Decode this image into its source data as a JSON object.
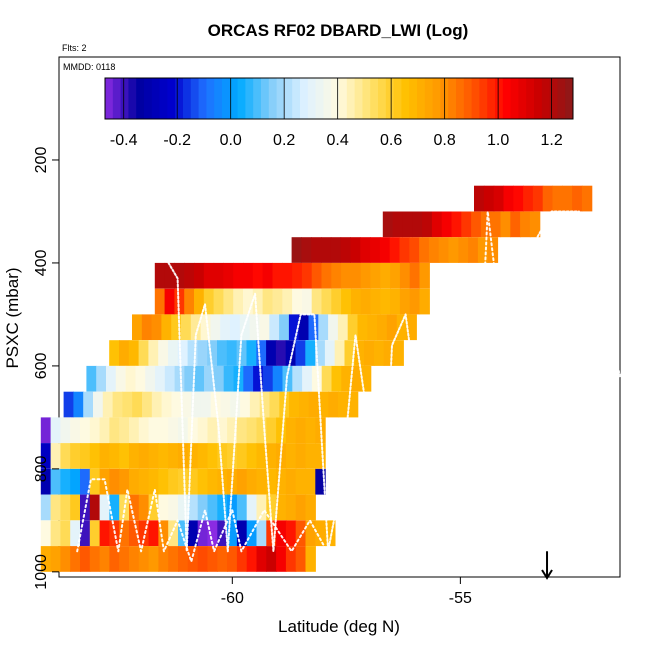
{
  "chart_data": {
    "type": "heatmap",
    "title": "ORCAS RF02 DBARD_LWI (Log)",
    "annotations": {
      "flts": "Flts: 2",
      "mmdd": "MMDD: 0118"
    },
    "xlabel": "Latitude (deg N)",
    "ylabel": "PSXC (mbar)",
    "xlim": [
      -63.8,
      -51.5
    ],
    "ylim": [
      1010,
      0
    ],
    "x_ticks": [
      -60,
      -55
    ],
    "x_tick_labels": [
      "-60",
      "-55"
    ],
    "y_ticks": [
      200,
      400,
      600,
      800,
      1000
    ],
    "y_tick_labels": [
      "200",
      "400",
      "600",
      "800",
      "1000"
    ],
    "colorbar": {
      "range": [
        -0.47,
        1.28
      ],
      "ticks": [
        -0.4,
        -0.2,
        0.0,
        0.2,
        0.4,
        0.6,
        0.8,
        1.0,
        1.2
      ],
      "tick_labels": [
        "-0.4",
        "-0.2",
        "0.0",
        "0.2",
        "0.4",
        "0.6",
        "0.8",
        "1.0",
        "1.2"
      ],
      "colors": [
        "#8a2be2",
        "#0000a0",
        "#0000cd",
        "#1e6fff",
        "#00aaff",
        "#87cefa",
        "#dff2ff",
        "#fffae0",
        "#ffe066",
        "#ffc000",
        "#ff9900",
        "#ff5500",
        "#ff0000",
        "#c80000",
        "#8b1a1a"
      ]
    },
    "lat_bins": {
      "start": -63.3,
      "step": 0.5,
      "count": 24
    },
    "pressure_bins": {
      "start": 250,
      "step": 50,
      "count": 15
    },
    "rows": [
      {
        "p": 275,
        "lat0": -54.7,
        "vals": [
          1.18,
          1.15,
          1.12,
          1.05,
          1.02,
          0.98,
          0.95,
          0.88,
          0.85,
          0.85,
          0.88,
          0.85
        ]
      },
      {
        "p": 325,
        "lat0": -56.7,
        "vals": [
          1.22,
          1.2,
          1.2,
          1.2,
          1.18,
          1.1,
          1.05,
          1.0,
          0.95,
          0.9,
          0.85,
          0.85,
          0.8,
          0.88,
          0.82,
          0.8
        ]
      },
      {
        "p": 375,
        "lat0": -58.7,
        "vals": [
          1.25,
          1.22,
          1.2,
          1.2,
          1.2,
          1.18,
          1.15,
          1.1,
          1.08,
          1.05,
          1.0,
          0.95,
          0.92,
          0.85,
          0.82,
          0.8,
          0.78,
          0.8,
          0.82,
          0.78,
          0.8
        ]
      },
      {
        "p": 425,
        "lat0": -61.7,
        "vals": [
          1.2,
          1.2,
          1.2,
          1.18,
          1.15,
          1.1,
          1.1,
          1.08,
          1.05,
          1.05,
          1.02,
          1.05,
          1.0,
          1.0,
          0.98,
          0.95,
          0.9,
          0.85,
          0.82,
          0.8,
          0.8,
          0.78,
          0.75,
          0.72,
          0.75,
          0.8,
          0.85,
          0.78
        ]
      },
      {
        "p": 475,
        "lat0": -61.7,
        "vals": [
          0.85,
          1.05,
          0.95,
          0.82,
          0.7,
          0.6,
          0.55,
          0.5,
          0.45,
          0.42,
          0.45,
          0.5,
          0.48,
          0.45,
          0.4,
          0.38,
          0.5,
          0.55,
          0.6,
          0.65,
          0.7,
          0.72,
          0.7,
          0.68,
          0.7,
          0.75,
          0.78,
          0.72
        ]
      },
      {
        "p": 525,
        "lat0": -62.2,
        "vals": [
          0.75,
          0.82,
          0.8,
          0.7,
          0.62,
          0.55,
          0.48,
          0.42,
          0.35,
          0.3,
          0.28,
          0.32,
          0.35,
          0.38,
          0.25,
          0.15,
          -0.2,
          -0.3,
          -0.1,
          0.2,
          0.35,
          0.45,
          0.6,
          0.68,
          0.7,
          0.72,
          0.75,
          0.7,
          0.72
        ]
      },
      {
        "p": 575,
        "lat0": -62.7,
        "vals": [
          0.65,
          0.72,
          0.68,
          0.55,
          0.45,
          0.38,
          0.32,
          0.28,
          0.22,
          0.18,
          0.15,
          0.1,
          0.08,
          0.12,
          0.05,
          -0.1,
          -0.3,
          -0.38,
          -0.3,
          -0.15,
          0.05,
          0.2,
          0.3,
          0.45,
          0.6,
          0.7,
          0.72,
          0.7,
          0.72,
          0.7
        ]
      },
      {
        "p": 625,
        "lat0": -63.2,
        "vals": [
          0.1,
          0.2,
          0.3,
          0.38,
          0.42,
          0.4,
          0.35,
          0.3,
          0.25,
          0.2,
          0.15,
          0.12,
          0.18,
          0.15,
          0.08,
          0.05,
          -0.1,
          -0.2,
          -0.15,
          -0.05,
          0.1,
          0.22,
          0.3,
          0.4,
          0.55,
          0.65,
          0.7,
          0.72,
          0.7
        ]
      },
      {
        "p": 675,
        "lat0": -63.7,
        "vals": [
          -0.15,
          -0.05,
          0.2,
          0.35,
          0.45,
          0.5,
          0.52,
          0.55,
          0.5,
          0.45,
          0.42,
          0.4,
          0.38,
          0.35,
          0.35,
          0.4,
          0.38,
          0.36,
          0.4,
          0.45,
          0.5,
          0.55,
          0.62,
          0.68,
          0.7,
          0.72,
          0.7,
          0.72,
          0.7,
          0.7
        ]
      },
      {
        "p": 725,
        "lat0": -64.2,
        "vals": [
          -0.45,
          0.3,
          0.35,
          0.38,
          0.4,
          0.42,
          0.45,
          0.5,
          0.48,
          0.45,
          0.42,
          0.4,
          0.4,
          0.38,
          0.36,
          0.4,
          0.42,
          0.45,
          0.42,
          0.45,
          0.5,
          0.52,
          0.55,
          0.6,
          0.65,
          0.7,
          0.72,
          0.7,
          0.72
        ]
      },
      {
        "p": 775,
        "lat0": -64.2,
        "vals": [
          -0.25,
          0.45,
          0.55,
          0.6,
          0.62,
          0.65,
          0.7,
          0.68,
          0.65,
          0.7,
          0.72,
          0.7,
          0.68,
          0.7,
          0.72,
          0.7,
          0.68,
          0.65,
          0.62,
          0.6,
          0.62,
          0.65,
          0.68,
          0.7,
          0.72,
          0.7,
          0.72,
          0.7,
          0.7
        ]
      },
      {
        "p": 825,
        "lat0": -64.2,
        "vals": [
          -0.3,
          0.1,
          0.05,
          0.02,
          -0.1,
          0.62,
          0.75,
          0.8,
          0.78,
          0.72,
          0.7,
          0.68,
          0.65,
          0.62,
          0.6,
          0.62,
          0.65,
          0.68,
          0.7,
          0.72,
          0.75,
          0.72,
          0.7,
          0.68,
          0.7,
          0.72,
          0.7,
          0.7,
          -0.35
        ]
      },
      {
        "p": 875,
        "lat0": -64.2,
        "vals": [
          0.2,
          0.5,
          0.55,
          0.62,
          -0.4,
          1.2,
          0.3,
          0.05,
          0.55,
          0.85,
          0.8,
          0.6,
          0.4,
          0.38,
          0.32,
          0.22,
          0.15,
          0.1,
          0.05,
          0.0,
          0.1,
          0.3,
          0.45,
          0.6,
          0.7,
          0.72,
          0.75,
          0.72
        ]
      },
      {
        "p": 925,
        "lat0": -64.2,
        "vals": [
          0.4,
          0.5,
          0.55,
          0.3,
          -0.4,
          0.6,
          1.0,
          0.95,
          0.85,
          0.9,
          0.95,
          1.0,
          0.8,
          0.5,
          0.1,
          -0.3,
          -0.45,
          -0.5,
          -0.4,
          0.0,
          -0.3,
          0.0,
          0.2,
          0.95,
          1.05,
          1.0,
          0.9,
          0.75,
          0.72,
          0.7
        ]
      },
      {
        "p": 975,
        "lat0": -64.2,
        "vals": [
          0.72,
          0.75,
          0.8,
          0.85,
          0.9,
          0.85,
          0.82,
          0.88,
          0.85,
          0.82,
          0.8,
          0.78,
          0.82,
          0.85,
          0.88,
          0.9,
          0.92,
          0.9,
          0.88,
          0.9,
          0.95,
          1.0,
          1.1,
          1.15,
          1.05,
          0.95,
          0.9,
          0.7
        ]
      }
    ],
    "flight_tracks": {
      "flight_a": {
        "color": "#ffffff",
        "points": [
          [
            -61.4,
            400
          ],
          [
            -61.2,
            430
          ],
          [
            -61.0,
            960
          ],
          [
            -60.8,
            540
          ],
          [
            -60.6,
            480
          ],
          [
            -60.3,
            720
          ],
          [
            -60.1,
            960
          ],
          [
            -59.8,
            540
          ],
          [
            -59.5,
            460
          ],
          [
            -59.3,
            720
          ],
          [
            -59.1,
            960
          ],
          [
            -58.8,
            620
          ],
          [
            -58.5,
            500
          ],
          [
            -58.2,
            500
          ],
          [
            -57.9,
            960
          ],
          [
            -57.6,
            820
          ],
          [
            -57.3,
            540
          ],
          [
            -57.0,
            720
          ],
          [
            -56.7,
            960
          ],
          [
            -56.5,
            560
          ],
          [
            -56.2,
            500
          ],
          [
            -55.9,
            700
          ],
          [
            -55.6,
            960
          ],
          [
            -55.3,
            560
          ],
          [
            -55.1,
            440
          ],
          [
            -54.8,
            440
          ],
          [
            -54.5,
            520
          ],
          [
            -54.2,
            960
          ],
          [
            -53.9,
            500
          ],
          [
            -53.5,
            380
          ],
          [
            -53.0,
            300
          ],
          [
            -52.4,
            300
          ],
          [
            -52.2,
            360
          ],
          [
            -51.8,
            500
          ],
          [
            -51.5,
            620
          ]
        ]
      },
      "flight_b": {
        "color": "#ffffff",
        "points": [
          [
            -63.4,
            960
          ],
          [
            -63.1,
            820
          ],
          [
            -62.8,
            820
          ],
          [
            -62.5,
            960
          ],
          [
            -62.3,
            840
          ],
          [
            -62.0,
            960
          ],
          [
            -61.7,
            840
          ],
          [
            -61.5,
            960
          ],
          [
            -61.2,
            900
          ],
          [
            -60.9,
            980
          ],
          [
            -60.6,
            880
          ],
          [
            -60.4,
            960
          ],
          [
            -60.0,
            880
          ],
          [
            -59.8,
            960
          ],
          [
            -59.3,
            880
          ],
          [
            -58.7,
            960
          ],
          [
            -58.3,
            900
          ],
          [
            -57.8,
            980
          ],
          [
            -57.3,
            880
          ],
          [
            -56.9,
            960
          ],
          [
            -56.5,
            900
          ],
          [
            -56.1,
            980
          ],
          [
            -55.6,
            880
          ],
          [
            -55.1,
            980
          ],
          [
            -55.0,
            980
          ],
          [
            -54.7,
            860
          ],
          [
            -54.4,
            300
          ],
          [
            -54.0,
            600
          ],
          [
            -53.6,
            900
          ],
          [
            -53.3,
            960
          ],
          [
            -53.0,
            800
          ],
          [
            -52.6,
            560
          ],
          [
            -52.3,
            420
          ],
          [
            -52.0,
            440
          ]
        ]
      }
    },
    "marker": {
      "lat": -53.1,
      "p_top": 960,
      "p_bottom": 1012,
      "symbol": "down-arrow"
    },
    "grid": false,
    "legend": "colorbar-top"
  }
}
